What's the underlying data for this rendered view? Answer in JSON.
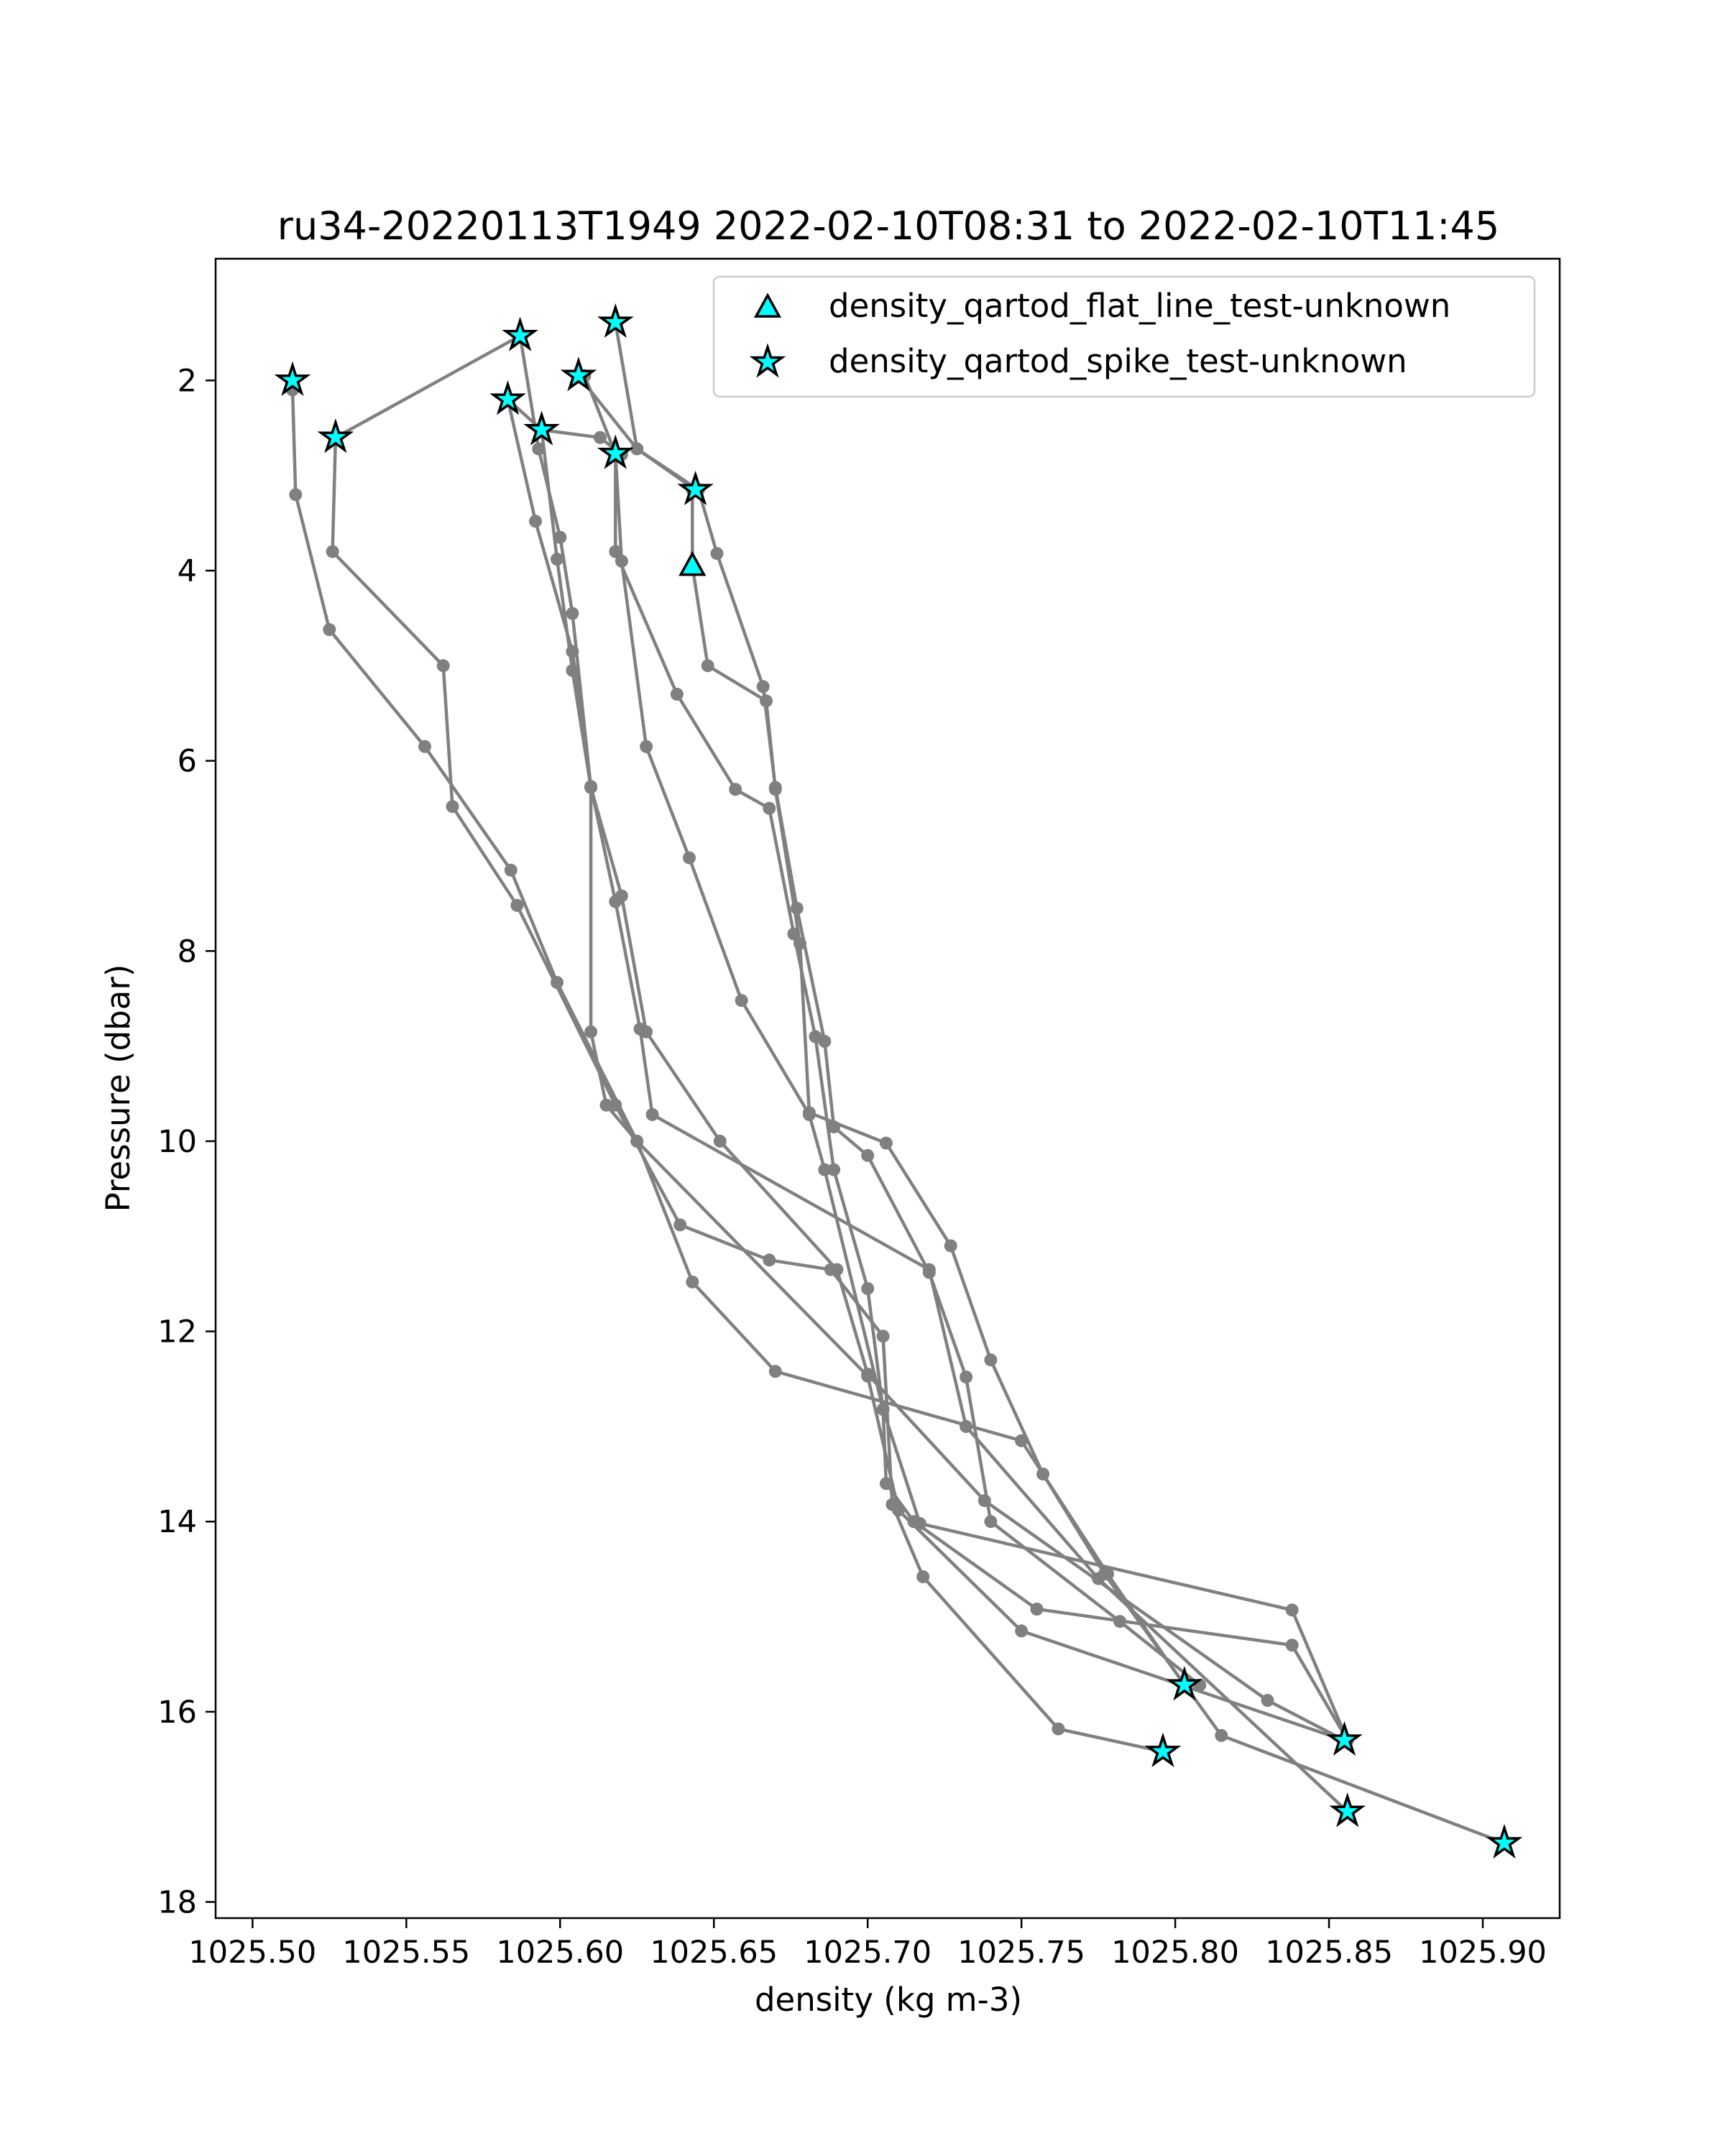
{
  "chart_data": {
    "type": "scatter",
    "title": "ru34-20220113T1949 2022-02-10T08:31 to 2022-02-10T11:45",
    "xlabel": "density (kg m-3)",
    "ylabel": "Pressure (dbar)",
    "xlim": [
      1025.488,
      1025.925
    ],
    "ylim": [
      18.17,
      0.72
    ],
    "y_inverted": true,
    "grid": false,
    "legend_position": "top-right",
    "x_ticks": [
      1025.5,
      1025.55,
      1025.6,
      1025.65,
      1025.7,
      1025.75,
      1025.8,
      1025.85,
      1025.9
    ],
    "x_tick_labels": [
      "1025.50",
      "1025.55",
      "1025.60",
      "1025.65",
      "1025.70",
      "1025.75",
      "1025.80",
      "1025.85",
      "1025.90"
    ],
    "y_ticks": [
      2,
      4,
      6,
      8,
      10,
      12,
      14,
      16,
      18
    ],
    "y_tick_labels": [
      "2",
      "4",
      "6",
      "8",
      "10",
      "12",
      "14",
      "16",
      "18"
    ],
    "colors": {
      "profile_line": "#808080",
      "marker_fill": "#00ffff",
      "marker_edge": "#000000"
    },
    "profiles": [
      {
        "points": [
          [
            1025.513,
            2.0
          ],
          [
            1025.513,
            2.1
          ],
          [
            1025.514,
            3.2
          ],
          [
            1025.525,
            4.62
          ],
          [
            1025.556,
            5.85
          ],
          [
            1025.584,
            7.15
          ],
          [
            1025.599,
            8.33
          ],
          [
            1025.625,
            10.0
          ],
          [
            1025.643,
            11.48
          ],
          [
            1025.67,
            12.42
          ],
          [
            1025.75,
            13.15
          ],
          [
            1025.778,
            14.55
          ],
          [
            1025.803,
            15.72
          ]
        ]
      },
      {
        "points": [
          [
            1025.527,
            2.6
          ],
          [
            1025.526,
            3.8
          ],
          [
            1025.562,
            5.0
          ],
          [
            1025.565,
            6.48
          ],
          [
            1025.586,
            7.52
          ],
          [
            1025.618,
            9.62
          ],
          [
            1025.639,
            10.88
          ],
          [
            1025.668,
            11.25
          ],
          [
            1025.688,
            11.35
          ],
          [
            1025.705,
            12.05
          ],
          [
            1025.708,
            13.82
          ],
          [
            1025.718,
            14.58
          ],
          [
            1025.762,
            16.18
          ],
          [
            1025.796,
            16.42
          ]
        ]
      },
      {
        "points": [
          [
            1025.527,
            2.6
          ],
          [
            1025.587,
            1.53
          ]
        ]
      },
      {
        "points": [
          [
            1025.587,
            1.53
          ],
          [
            1025.593,
            2.72
          ],
          [
            1025.6,
            3.65
          ],
          [
            1025.604,
            4.45
          ],
          [
            1025.61,
            6.28
          ],
          [
            1025.62,
            7.42
          ],
          [
            1025.628,
            8.85
          ],
          [
            1025.652,
            10.0
          ],
          [
            1025.69,
            11.35
          ],
          [
            1025.7,
            12.45
          ],
          [
            1025.738,
            13.78
          ],
          [
            1025.83,
            15.88
          ],
          [
            1025.855,
            16.3
          ]
        ]
      },
      {
        "points": [
          [
            1025.583,
            2.2
          ],
          [
            1025.592,
            3.48
          ],
          [
            1025.604,
            4.85
          ],
          [
            1025.61,
            6.27
          ],
          [
            1025.618,
            7.48
          ],
          [
            1025.626,
            8.82
          ],
          [
            1025.63,
            9.72
          ],
          [
            1025.72,
            11.35
          ],
          [
            1025.732,
            13.0
          ],
          [
            1025.775,
            14.6
          ],
          [
            1025.856,
            17.05
          ]
        ]
      },
      {
        "points": [
          [
            1025.583,
            2.2
          ],
          [
            1025.594,
            2.52
          ],
          [
            1025.599,
            3.88
          ],
          [
            1025.604,
            5.05
          ],
          [
            1025.61,
            6.28
          ],
          [
            1025.61,
            8.85
          ],
          [
            1025.615,
            9.62
          ],
          [
            1025.625,
            10.0
          ],
          [
            1025.7,
            12.47
          ],
          [
            1025.71,
            13.88
          ],
          [
            1025.75,
            15.15
          ],
          [
            1025.855,
            16.3
          ]
        ]
      },
      {
        "points": [
          [
            1025.594,
            2.52
          ],
          [
            1025.613,
            2.6
          ],
          [
            1025.62,
            2.78
          ]
        ]
      },
      {
        "points": [
          [
            1025.606,
            1.95
          ],
          [
            1025.625,
            2.72
          ],
          [
            1025.644,
            3.15
          ]
        ]
      },
      {
        "points": [
          [
            1025.608,
            1.95
          ],
          [
            1025.618,
            2.77
          ],
          [
            1025.62,
            3.9
          ],
          [
            1025.628,
            5.85
          ],
          [
            1025.642,
            7.02
          ],
          [
            1025.659,
            8.52
          ],
          [
            1025.681,
            9.72
          ],
          [
            1025.686,
            10.3
          ],
          [
            1025.705,
            12.82
          ],
          [
            1025.706,
            13.6
          ],
          [
            1025.715,
            14.0
          ],
          [
            1025.755,
            14.92
          ],
          [
            1025.838,
            15.3
          ],
          [
            1025.856,
            16.3
          ]
        ]
      },
      {
        "points": [
          [
            1025.618,
            1.39
          ],
          [
            1025.625,
            2.72
          ],
          [
            1025.645,
            3.15
          ],
          [
            1025.651,
            3.82
          ],
          [
            1025.666,
            5.22
          ],
          [
            1025.67,
            6.28
          ],
          [
            1025.677,
            7.55
          ],
          [
            1025.686,
            8.95
          ],
          [
            1025.689,
            9.85
          ],
          [
            1025.7,
            10.15
          ],
          [
            1025.72,
            11.38
          ],
          [
            1025.732,
            12.48
          ],
          [
            1025.74,
            14.0
          ],
          [
            1025.782,
            15.05
          ],
          [
            1025.808,
            15.72
          ]
        ]
      },
      {
        "points": [
          [
            1025.618,
            2.77
          ],
          [
            1025.618,
            3.8
          ],
          [
            1025.638,
            5.3
          ],
          [
            1025.657,
            6.3
          ],
          [
            1025.668,
            6.5
          ],
          [
            1025.676,
            7.82
          ],
          [
            1025.683,
            8.9
          ],
          [
            1025.689,
            10.3
          ],
          [
            1025.7,
            11.55
          ],
          [
            1025.705,
            12.82
          ],
          [
            1025.717,
            14.02
          ],
          [
            1025.838,
            14.93
          ],
          [
            1025.856,
            16.3
          ]
        ]
      },
      {
        "points": [
          [
            1025.643,
            3.95
          ],
          [
            1025.643,
            3.15
          ]
        ]
      },
      {
        "points": [
          [
            1025.643,
            3.95
          ],
          [
            1025.648,
            5.0
          ],
          [
            1025.667,
            5.37
          ],
          [
            1025.67,
            6.3
          ],
          [
            1025.678,
            7.92
          ],
          [
            1025.681,
            9.7
          ],
          [
            1025.706,
            10.02
          ],
          [
            1025.727,
            11.1
          ],
          [
            1025.74,
            12.3
          ],
          [
            1025.757,
            13.5
          ],
          [
            1025.777,
            14.55
          ],
          [
            1025.815,
            16.25
          ],
          [
            1025.907,
            17.38
          ]
        ]
      }
    ],
    "series": [
      {
        "name": "density_qartod_flat_line_test-unknown",
        "marker": "triangle",
        "x": [
          1025.643
        ],
        "y": [
          3.95
        ]
      },
      {
        "name": "density_qartod_spike_test-unknown",
        "marker": "star",
        "x": [
          1025.513,
          1025.527,
          1025.587,
          1025.618,
          1025.606,
          1025.583,
          1025.594,
          1025.618,
          1025.644,
          1025.803,
          1025.796,
          1025.855,
          1025.856,
          1025.907
        ],
        "y": [
          2.0,
          2.6,
          1.53,
          1.39,
          1.95,
          2.2,
          2.52,
          2.77,
          3.15,
          15.72,
          16.42,
          16.3,
          17.05,
          17.38
        ]
      }
    ]
  }
}
